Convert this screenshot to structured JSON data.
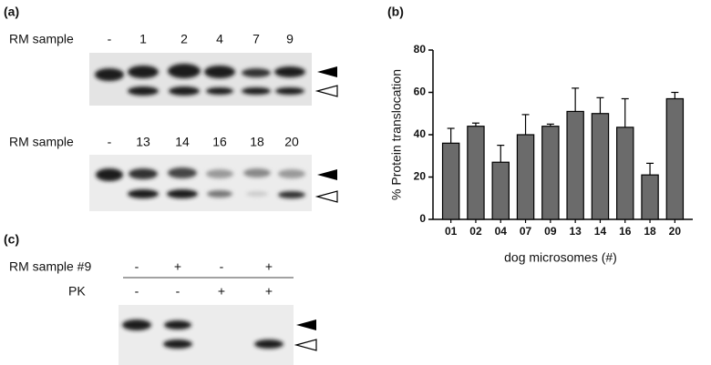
{
  "panel_a": {
    "label": "(a)",
    "gels": [
      {
        "row_label": "RM sample",
        "lanes": [
          "-",
          "1",
          "2",
          "4",
          "7",
          "9"
        ]
      },
      {
        "row_label": "RM sample",
        "lanes": [
          "-",
          "13",
          "14",
          "16",
          "18",
          "20"
        ]
      }
    ]
  },
  "chart_data": {
    "type": "bar",
    "panel_label": "(b)",
    "xlabel": "dog microsomes (#)",
    "ylabel": "% Protein translocation",
    "categories": [
      "01",
      "02",
      "04",
      "07",
      "09",
      "13",
      "14",
      "16",
      "18",
      "20"
    ],
    "values": [
      36,
      44,
      27,
      40,
      44,
      51,
      50,
      43.5,
      21,
      57
    ],
    "errors": [
      7,
      1.5,
      8,
      9.5,
      1,
      11,
      7.5,
      13.5,
      5.5,
      3
    ],
    "color": "#6b6b6b",
    "ylim": [
      0,
      80
    ],
    "yticks": [
      0,
      20,
      40,
      60,
      80
    ]
  },
  "panel_c": {
    "label": "(c)",
    "rows": [
      {
        "label": "RM sample #9",
        "lanes": [
          "-",
          "+",
          "-",
          "+"
        ]
      },
      {
        "label": "PK",
        "lanes": [
          "-",
          "-",
          "+",
          "+"
        ]
      }
    ]
  }
}
